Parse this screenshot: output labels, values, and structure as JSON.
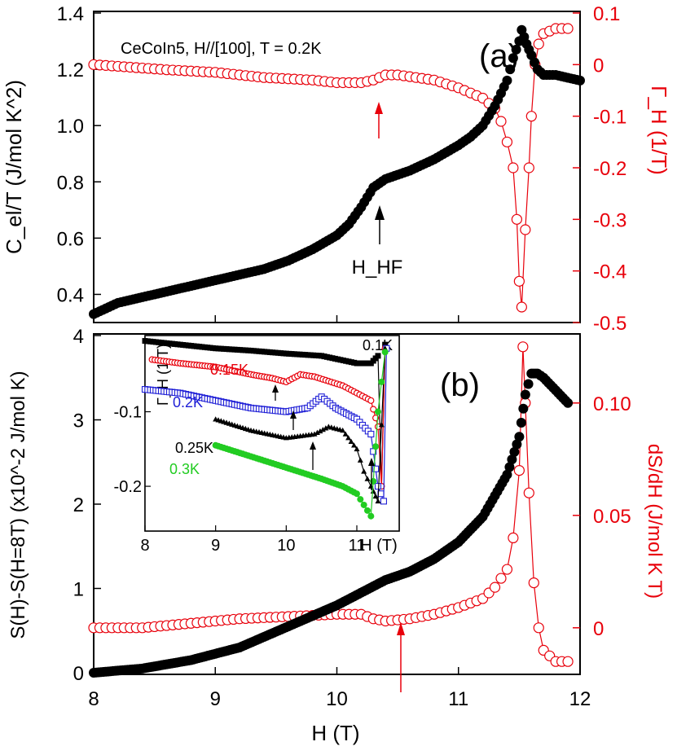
{
  "chart_data": [
    {
      "panel": "(a)",
      "type": "scatter",
      "annotation_text": "CeCoIn5, H//[100], T = 0.2K",
      "arrow_label": "H_HF",
      "xlim": [
        8,
        12
      ],
      "ylim_left": [
        0.3,
        1.4
      ],
      "ylim_right": [
        -0.5,
        0.1
      ],
      "ylabel_left": "C_el/T (J/mol K^2)",
      "ylabel_right": "Γ_H (1/T)",
      "ticks_left": [
        "0.4",
        "0.6",
        "0.8",
        "1.0",
        "1.2",
        "1.4"
      ],
      "ticks_right": [
        "-0.5",
        "-0.4",
        "-0.3",
        "-0.2",
        "-0.1",
        "0",
        "0.1"
      ],
      "series": [
        {
          "axis": "left",
          "color": "#000000",
          "marker": "filled-circle",
          "points": [
            [
              8.0,
              0.33
            ],
            [
              8.2,
              0.37
            ],
            [
              8.4,
              0.39
            ],
            [
              8.6,
              0.41
            ],
            [
              8.8,
              0.43
            ],
            [
              9.0,
              0.45
            ],
            [
              9.2,
              0.47
            ],
            [
              9.4,
              0.49
            ],
            [
              9.6,
              0.52
            ],
            [
              9.8,
              0.56
            ],
            [
              10.0,
              0.61
            ],
            [
              10.1,
              0.65
            ],
            [
              10.2,
              0.71
            ],
            [
              10.3,
              0.78
            ],
            [
              10.4,
              0.81
            ],
            [
              10.6,
              0.84
            ],
            [
              10.8,
              0.88
            ],
            [
              11.0,
              0.93
            ],
            [
              11.1,
              0.96
            ],
            [
              11.2,
              1.0
            ],
            [
              11.3,
              1.07
            ],
            [
              11.4,
              1.16
            ],
            [
              11.45,
              1.24
            ],
            [
              11.5,
              1.3
            ],
            [
              11.52,
              1.34
            ],
            [
              11.56,
              1.29
            ],
            [
              11.6,
              1.25
            ],
            [
              11.65,
              1.2
            ],
            [
              11.7,
              1.18
            ],
            [
              11.8,
              1.18
            ],
            [
              11.9,
              1.17
            ],
            [
              12.0,
              1.16
            ]
          ]
        },
        {
          "axis": "right",
          "color": "#e8000b",
          "marker": "open-circle",
          "points": [
            [
              8.0,
              0.0
            ],
            [
              8.3,
              -0.005
            ],
            [
              8.6,
              -0.01
            ],
            [
              9.0,
              -0.015
            ],
            [
              9.4,
              -0.025
            ],
            [
              9.8,
              -0.03
            ],
            [
              10.0,
              -0.035
            ],
            [
              10.2,
              -0.035
            ],
            [
              10.3,
              -0.03
            ],
            [
              10.4,
              -0.02
            ],
            [
              10.5,
              -0.02
            ],
            [
              10.8,
              -0.03
            ],
            [
              11.0,
              -0.045
            ],
            [
              11.2,
              -0.065
            ],
            [
              11.3,
              -0.085
            ],
            [
              11.35,
              -0.11
            ],
            [
              11.4,
              -0.15
            ],
            [
              11.45,
              -0.2
            ],
            [
              11.48,
              -0.3
            ],
            [
              11.5,
              -0.42
            ],
            [
              11.52,
              -0.47
            ],
            [
              11.55,
              -0.32
            ],
            [
              11.58,
              -0.2
            ],
            [
              11.6,
              -0.1
            ],
            [
              11.63,
              0.0
            ],
            [
              11.66,
              0.04
            ],
            [
              11.7,
              0.06
            ],
            [
              11.8,
              0.07
            ],
            [
              11.9,
              0.07
            ]
          ]
        }
      ]
    },
    {
      "panel": "(b)",
      "type": "scatter",
      "xlim": [
        8,
        12
      ],
      "ylim_left": [
        0,
        4
      ],
      "ylim_right": [
        -0.02,
        0.13
      ],
      "ylabel_left": "S(H)-S(H=8T) (x10^-2 J/mol K)",
      "ylabel_right": "dS/dH (J/mol K T)",
      "xlabel": "H (T)",
      "xticks": [
        "8",
        "9",
        "10",
        "11",
        "12"
      ],
      "ticks_left": [
        "0",
        "1",
        "2",
        "3",
        "4"
      ],
      "ticks_right": [
        "0",
        "0.05",
        "0.10"
      ],
      "series": [
        {
          "axis": "left",
          "color": "#000000",
          "marker": "filled-circle",
          "points": [
            [
              8.0,
              0.0
            ],
            [
              8.4,
              0.05
            ],
            [
              8.8,
              0.15
            ],
            [
              9.2,
              0.3
            ],
            [
              9.6,
              0.55
            ],
            [
              10.0,
              0.8
            ],
            [
              10.2,
              0.95
            ],
            [
              10.4,
              1.1
            ],
            [
              10.6,
              1.2
            ],
            [
              10.8,
              1.35
            ],
            [
              11.0,
              1.55
            ],
            [
              11.2,
              1.85
            ],
            [
              11.3,
              2.1
            ],
            [
              11.4,
              2.35
            ],
            [
              11.5,
              2.8
            ],
            [
              11.55,
              3.3
            ],
            [
              11.6,
              3.55
            ],
            [
              11.65,
              3.55
            ],
            [
              11.7,
              3.5
            ],
            [
              11.8,
              3.35
            ],
            [
              11.9,
              3.2
            ]
          ]
        },
        {
          "axis": "right",
          "color": "#e8000b",
          "marker": "open-circle",
          "points": [
            [
              8.0,
              0.0
            ],
            [
              8.4,
              0.0
            ],
            [
              8.8,
              0.002
            ],
            [
              9.2,
              0.004
            ],
            [
              9.6,
              0.005
            ],
            [
              10.0,
              0.006
            ],
            [
              10.2,
              0.006
            ],
            [
              10.3,
              0.004
            ],
            [
              10.4,
              0.003
            ],
            [
              10.6,
              0.004
            ],
            [
              10.8,
              0.006
            ],
            [
              11.0,
              0.009
            ],
            [
              11.2,
              0.013
            ],
            [
              11.3,
              0.018
            ],
            [
              11.4,
              0.026
            ],
            [
              11.45,
              0.04
            ],
            [
              11.5,
              0.07
            ],
            [
              11.53,
              0.125
            ],
            [
              11.55,
              0.1
            ],
            [
              11.58,
              0.06
            ],
            [
              11.62,
              0.02
            ],
            [
              11.66,
              0.0
            ],
            [
              11.7,
              -0.01
            ],
            [
              11.8,
              -0.015
            ],
            [
              11.9,
              -0.015
            ]
          ]
        }
      ]
    },
    {
      "panel": "inset",
      "type": "scatter",
      "xlim": [
        8,
        11.6
      ],
      "ylim": [
        -0.26,
        0.0
      ],
      "ylabel": "Γ_H (1/T)",
      "xlabel": "H (T)",
      "xticks": [
        "8",
        "9",
        "10",
        "11"
      ],
      "yticks": [
        "-0.2",
        "-0.1"
      ],
      "series": [
        {
          "name": "0.1K",
          "color": "#000000",
          "marker": "filled-square",
          "points": [
            [
              8.0,
              -0.005
            ],
            [
              8.5,
              -0.01
            ],
            [
              9.0,
              -0.015
            ],
            [
              9.5,
              -0.018
            ],
            [
              10.0,
              -0.022
            ],
            [
              10.5,
              -0.025
            ],
            [
              11.0,
              -0.035
            ],
            [
              11.2,
              -0.035
            ],
            [
              11.3,
              -0.025
            ],
            [
              11.35,
              -0.2
            ],
            [
              11.4,
              -0.01
            ]
          ]
        },
        {
          "name": "0.15K",
          "color": "#e8000b",
          "marker": "open-circle",
          "points": [
            [
              8.1,
              -0.03
            ],
            [
              8.5,
              -0.035
            ],
            [
              9.0,
              -0.04
            ],
            [
              9.5,
              -0.05
            ],
            [
              9.8,
              -0.055
            ],
            [
              10.0,
              -0.06
            ],
            [
              10.2,
              -0.05
            ],
            [
              10.4,
              -0.053
            ],
            [
              10.8,
              -0.065
            ],
            [
              11.0,
              -0.075
            ],
            [
              11.2,
              -0.085
            ],
            [
              11.3,
              -0.12
            ],
            [
              11.35,
              -0.2
            ],
            [
              11.4,
              -0.015
            ]
          ]
        },
        {
          "name": "0.2K",
          "color": "#1f1fd6",
          "marker": "open-square",
          "points": [
            [
              8.0,
              -0.07
            ],
            [
              8.5,
              -0.075
            ],
            [
              9.0,
              -0.085
            ],
            [
              9.5,
              -0.095
            ],
            [
              10.0,
              -0.1
            ],
            [
              10.3,
              -0.095
            ],
            [
              10.5,
              -0.08
            ],
            [
              10.7,
              -0.095
            ],
            [
              11.0,
              -0.11
            ],
            [
              11.2,
              -0.13
            ],
            [
              11.3,
              -0.2
            ],
            [
              11.38,
              -0.22
            ],
            [
              11.42,
              -0.015
            ]
          ]
        },
        {
          "name": "0.25K",
          "color": "#000000",
          "marker": "filled-triangle",
          "points": [
            [
              9.0,
              -0.11
            ],
            [
              9.5,
              -0.125
            ],
            [
              10.0,
              -0.135
            ],
            [
              10.4,
              -0.13
            ],
            [
              10.6,
              -0.12
            ],
            [
              10.8,
              -0.125
            ],
            [
              11.0,
              -0.15
            ],
            [
              11.1,
              -0.18
            ],
            [
              11.2,
              -0.2
            ],
            [
              11.3,
              -0.22
            ],
            [
              11.4,
              -0.015
            ]
          ]
        },
        {
          "name": "0.3K",
          "color": "#22cc22",
          "marker": "filled-circle",
          "points": [
            [
              9.0,
              -0.145
            ],
            [
              9.5,
              -0.16
            ],
            [
              10.0,
              -0.175
            ],
            [
              10.5,
              -0.19
            ],
            [
              10.8,
              -0.2
            ],
            [
              11.0,
              -0.21
            ],
            [
              11.1,
              -0.225
            ],
            [
              11.2,
              -0.24
            ],
            [
              11.3,
              -0.1
            ],
            [
              11.4,
              -0.02
            ]
          ]
        }
      ]
    }
  ]
}
